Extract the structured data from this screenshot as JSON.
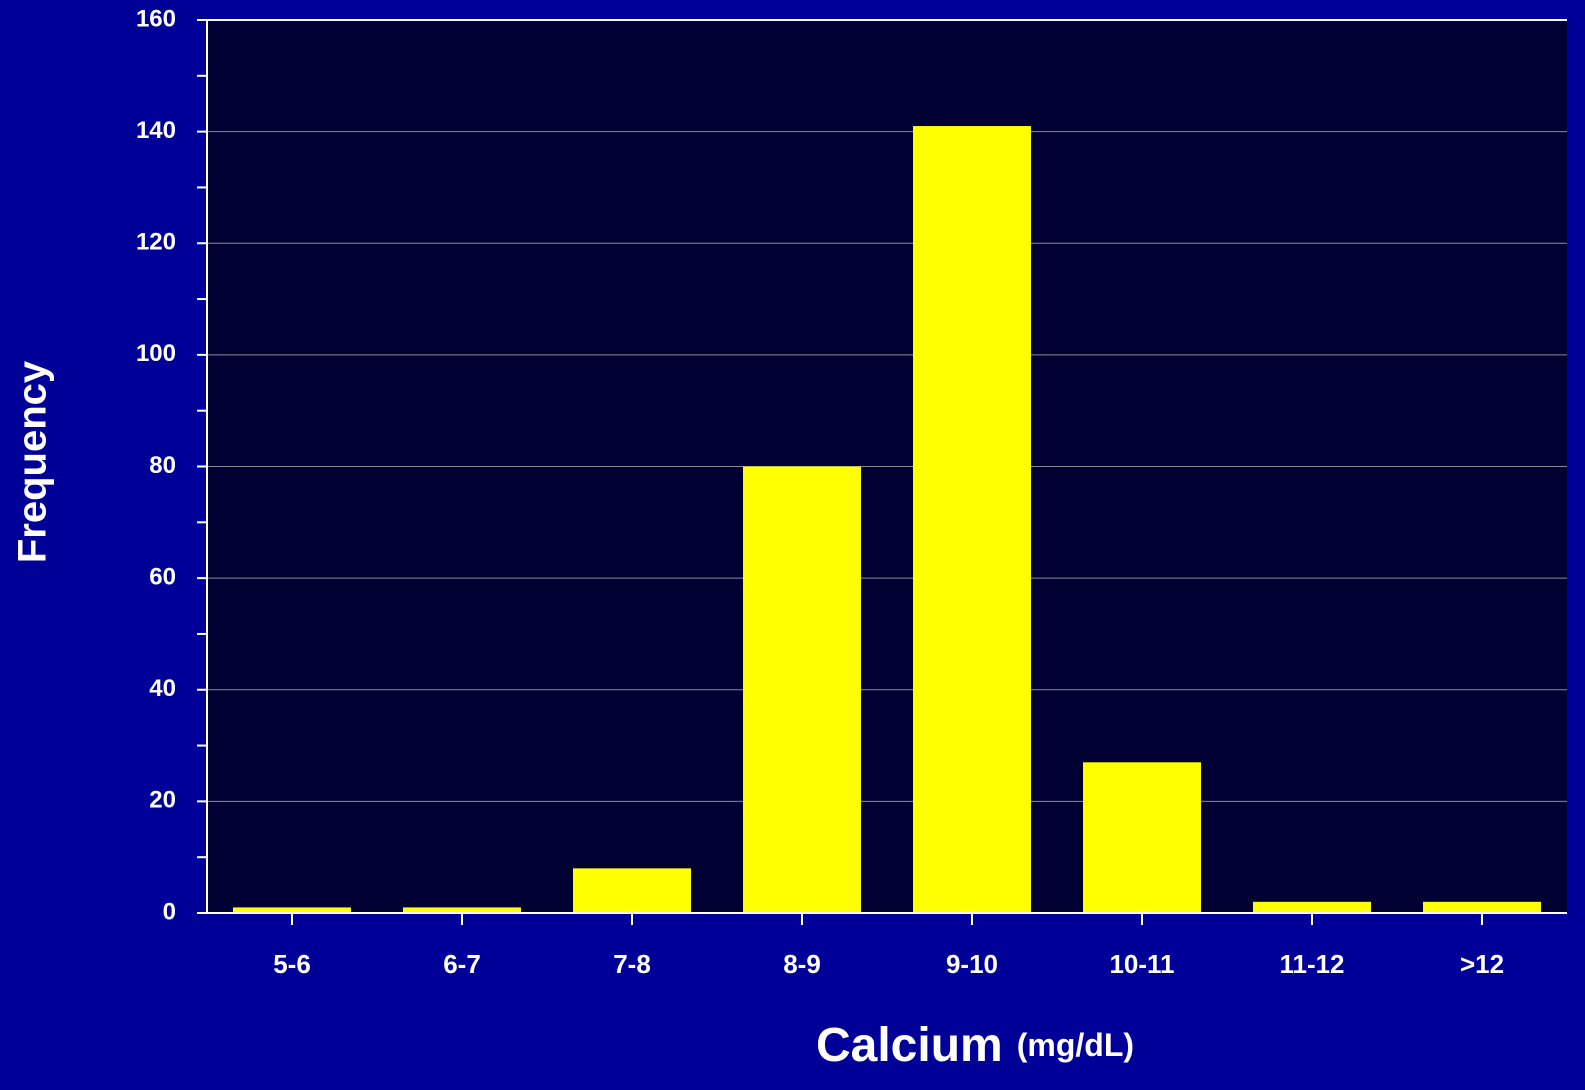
{
  "chart_data": {
    "type": "bar",
    "categories": [
      "5-6",
      "6-7",
      "7-8",
      "8-9",
      "9-10",
      "10-11",
      "11-12",
      ">12"
    ],
    "values": [
      1,
      1,
      8,
      80,
      141,
      27,
      2,
      2
    ],
    "color": "#ffff00",
    "ylim": [
      0,
      160
    ],
    "yticks": [
      0,
      20,
      40,
      60,
      80,
      100,
      120,
      140,
      160
    ],
    "yminor_ticks": [
      10,
      30,
      50,
      70,
      90,
      110,
      130,
      150
    ],
    "grid": true,
    "y_label": "Frequency",
    "x_label": "Calcium",
    "x_label_unit": "(mg/dL)"
  }
}
